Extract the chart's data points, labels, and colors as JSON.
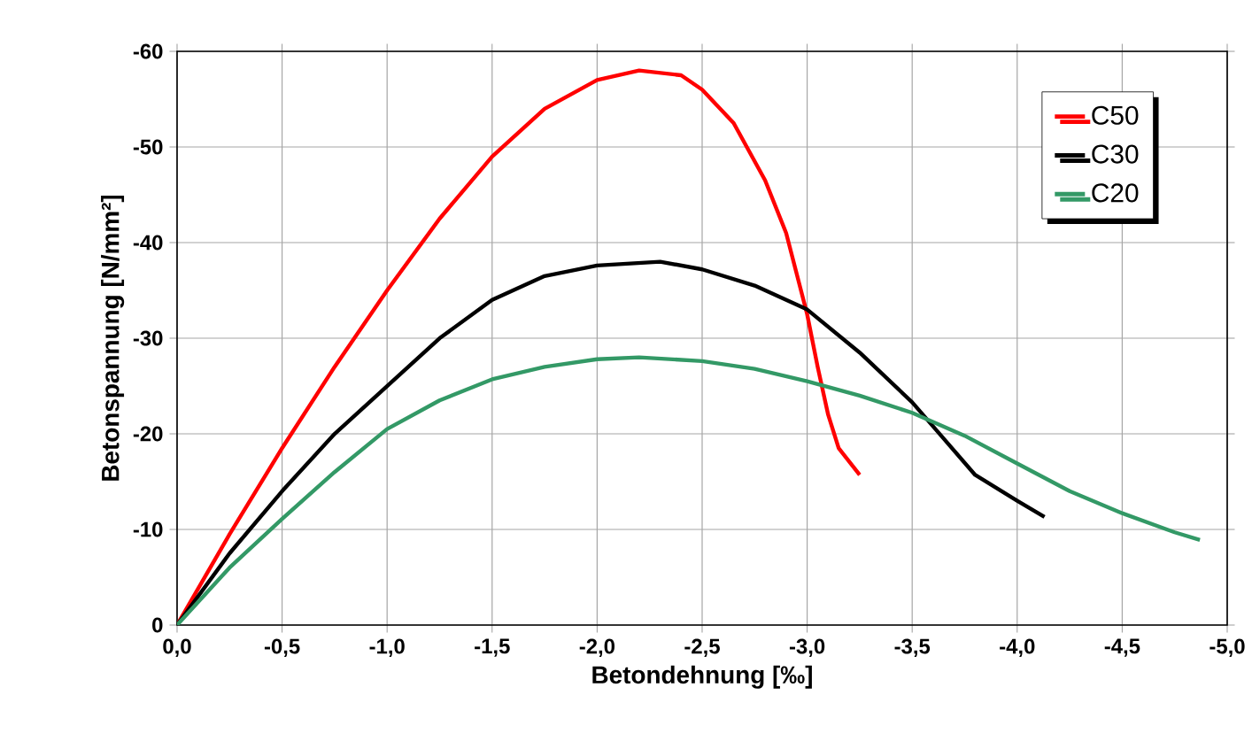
{
  "chart_data": {
    "type": "line",
    "xlabel": "Betondehnung  [‰]",
    "ylabel": "Betonspannung  [N/mm²]",
    "xlim": [
      0,
      -5
    ],
    "ylim": [
      0,
      -60
    ],
    "xticks": [
      {
        "value": 0,
        "label": "0,0"
      },
      {
        "value": -0.5,
        "label": "-0,5"
      },
      {
        "value": -1,
        "label": "-1,0"
      },
      {
        "value": -1.5,
        "label": "-1,5"
      },
      {
        "value": -2,
        "label": "-2,0"
      },
      {
        "value": -2.5,
        "label": "-2,5"
      },
      {
        "value": -3,
        "label": "-3,0"
      },
      {
        "value": -3.5,
        "label": "-3,5"
      },
      {
        "value": -4,
        "label": "-4,0"
      },
      {
        "value": -4.5,
        "label": "-4,5"
      },
      {
        "value": -5,
        "label": "-5,0"
      }
    ],
    "yticks": [
      0,
      -10,
      -20,
      -30,
      -40,
      -50,
      -60
    ],
    "grid": true,
    "legend": "top right",
    "marker": "none",
    "line_style": "solid",
    "series": [
      {
        "name": "C50",
        "color": "#ff0000",
        "x": [
          0,
          -0.25,
          -0.5,
          -0.75,
          -1.0,
          -1.25,
          -1.5,
          -1.75,
          -2.0,
          -2.2,
          -2.4,
          -2.5,
          -2.65,
          -2.8,
          -2.9,
          -3.0,
          -3.05,
          -3.1,
          -3.15,
          -3.25
        ],
        "values": [
          0,
          -9.5,
          -18.5,
          -27,
          -35,
          -42.5,
          -49,
          -54,
          -57,
          -58,
          -57.5,
          -56,
          -52.5,
          -46.5,
          -41,
          -32.5,
          -27,
          -22,
          -18.5,
          -15.7
        ]
      },
      {
        "name": "C30",
        "color": "#000000",
        "x": [
          0,
          -0.25,
          -0.5,
          -0.75,
          -1.0,
          -1.25,
          -1.5,
          -1.75,
          -2.0,
          -2.3,
          -2.5,
          -2.75,
          -3.0,
          -3.25,
          -3.5,
          -3.65,
          -3.8,
          -4.0,
          -4.13
        ],
        "values": [
          0,
          -7.5,
          -14,
          -20,
          -25,
          -30,
          -34,
          -36.5,
          -37.6,
          -38,
          -37.2,
          -35.5,
          -33,
          -28.5,
          -23.3,
          -19.5,
          -15.7,
          -13,
          -11.3
        ]
      },
      {
        "name": "C20",
        "color": "#339966",
        "x": [
          0,
          -0.25,
          -0.5,
          -0.75,
          -1.0,
          -1.25,
          -1.5,
          -1.75,
          -2.0,
          -2.2,
          -2.5,
          -2.75,
          -3.0,
          -3.25,
          -3.5,
          -3.75,
          -4.0,
          -4.25,
          -4.5,
          -4.75,
          -4.87
        ],
        "values": [
          0,
          -6,
          -11.1,
          -16,
          -20.5,
          -23.5,
          -25.7,
          -27,
          -27.8,
          -28,
          -27.6,
          -26.8,
          -25.5,
          -24,
          -22.2,
          -19.8,
          -16.9,
          -14,
          -11.7,
          -9.7,
          -8.9
        ]
      }
    ]
  }
}
